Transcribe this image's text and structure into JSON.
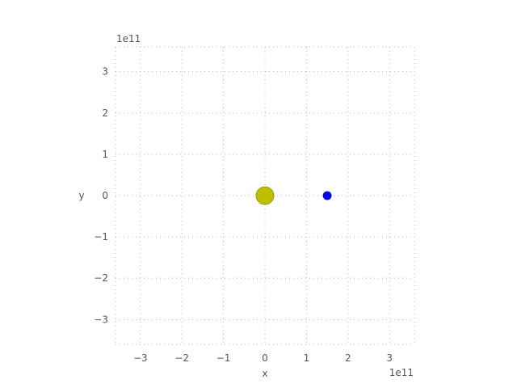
{
  "chart_data": {
    "type": "scatter",
    "title": "",
    "xlabel": "x",
    "ylabel": "y",
    "x_offset_label": "1e11",
    "y_offset_label": "1e11",
    "xlim": [
      -3.6,
      3.6
    ],
    "ylim": [
      -3.6,
      3.6
    ],
    "xticks": [
      -3,
      -2,
      -1,
      0,
      1,
      2,
      3
    ],
    "yticks": [
      -3,
      -2,
      -1,
      0,
      1,
      2,
      3
    ],
    "xtick_labels": [
      "−3",
      "−2",
      "−1",
      "0",
      "1",
      "2",
      "3"
    ],
    "ytick_labels": [
      "−3",
      "−2",
      "−1",
      "0",
      "1",
      "2",
      "3"
    ],
    "grid": true,
    "grid_style": "dotted",
    "points": [
      {
        "x": 0.0,
        "y": 0.0,
        "color": "#bfbf00",
        "marker": "large-circle"
      },
      {
        "x": 1.5,
        "y": 0.0,
        "color": "#0000ff",
        "marker": "small-circle"
      }
    ]
  }
}
